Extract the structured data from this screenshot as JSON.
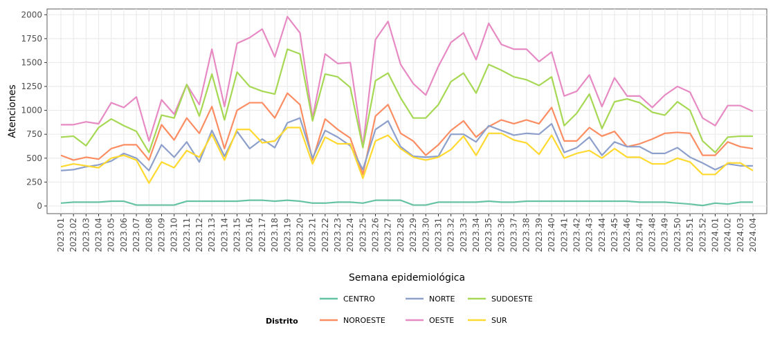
{
  "chart_data": {
    "type": "line",
    "x_label": "Semana epidemiológica",
    "y_label": "Atenciones",
    "legend_title": "Distrito",
    "categories": [
      "2023.01",
      "2023.02",
      "2023.03",
      "2023.04",
      "2023.05",
      "2023.06",
      "2023.07",
      "2023.08",
      "2023.09",
      "2023.10",
      "2023.11",
      "2023.12",
      "2023.13",
      "2023.14",
      "2023.15",
      "2023.16",
      "2023.17",
      "2023.18",
      "2023.19",
      "2023.20",
      "2023.21",
      "2023.22",
      "2023.23",
      "2023.24",
      "2023.25",
      "2023.26",
      "2023.27",
      "2023.28",
      "2023.29",
      "2023.30",
      "2023.31",
      "2023.32",
      "2023.33",
      "2023.34",
      "2023.35",
      "2023.36",
      "2023.37",
      "2023.38",
      "2023.39",
      "2023.40",
      "2023.41",
      "2023.42",
      "2023.43",
      "2023.44",
      "2023.45",
      "2023.46",
      "2023.47",
      "2023.48",
      "2023.49",
      "2023.50",
      "2023.51",
      "2023.52",
      "2024.01",
      "2024.02",
      "2024.03",
      "2024.04"
    ],
    "ylim": [
      -80,
      2060
    ],
    "yticks": [
      0,
      250,
      500,
      750,
      1000,
      1250,
      1500,
      1750,
      2000
    ],
    "grid": true,
    "series": [
      {
        "name": "CENTRO",
        "color": "#66c2a5",
        "values": [
          30,
          40,
          40,
          40,
          50,
          50,
          10,
          10,
          10,
          10,
          50,
          50,
          50,
          50,
          50,
          60,
          60,
          50,
          60,
          50,
          30,
          30,
          40,
          40,
          30,
          60,
          60,
          60,
          10,
          10,
          40,
          40,
          40,
          40,
          50,
          40,
          40,
          50,
          50,
          50,
          50,
          50,
          50,
          50,
          50,
          50,
          40,
          40,
          40,
          30,
          20,
          5,
          30,
          20,
          40,
          40
        ]
      },
      {
        "name": "NOROESTE",
        "color": "#fc8d62",
        "values": [
          530,
          480,
          510,
          490,
          600,
          640,
          640,
          480,
          850,
          690,
          920,
          760,
          1040,
          600,
          1000,
          1080,
          1080,
          920,
          1180,
          1060,
          480,
          910,
          800,
          710,
          330,
          940,
          1060,
          760,
          680,
          530,
          640,
          790,
          890,
          720,
          830,
          900,
          860,
          900,
          860,
          1030,
          680,
          680,
          820,
          730,
          780,
          620,
          650,
          700,
          760,
          770,
          760,
          530,
          530,
          670,
          620,
          600
        ]
      },
      {
        "name": "NORTE",
        "color": "#8da0cb",
        "values": [
          370,
          380,
          410,
          430,
          470,
          550,
          500,
          370,
          640,
          510,
          670,
          460,
          790,
          520,
          780,
          600,
          700,
          610,
          870,
          920,
          500,
          790,
          720,
          630,
          380,
          800,
          890,
          620,
          520,
          510,
          520,
          750,
          750,
          670,
          840,
          790,
          740,
          760,
          750,
          860,
          560,
          610,
          720,
          530,
          670,
          620,
          620,
          550,
          550,
          610,
          510,
          450,
          380,
          440,
          420,
          420
        ]
      },
      {
        "name": "OESTE",
        "color": "#e78ac3",
        "values": [
          850,
          850,
          880,
          860,
          1080,
          1030,
          1140,
          680,
          1110,
          960,
          1270,
          1060,
          1640,
          1040,
          1700,
          1760,
          1850,
          1560,
          1980,
          1810,
          920,
          1590,
          1490,
          1500,
          620,
          1740,
          1930,
          1480,
          1280,
          1160,
          1460,
          1710,
          1810,
          1530,
          1910,
          1690,
          1640,
          1640,
          1510,
          1610,
          1150,
          1200,
          1370,
          1040,
          1340,
          1150,
          1150,
          1030,
          1160,
          1250,
          1190,
          920,
          840,
          1050,
          1050,
          990
        ]
      },
      {
        "name": "SUDOESTE",
        "color": "#a6d854",
        "values": [
          720,
          730,
          630,
          820,
          910,
          840,
          780,
          560,
          950,
          920,
          1270,
          940,
          1380,
          900,
          1400,
          1250,
          1200,
          1170,
          1640,
          1590,
          890,
          1380,
          1350,
          1240,
          610,
          1310,
          1390,
          1130,
          920,
          920,
          1060,
          1300,
          1390,
          1180,
          1480,
          1420,
          1350,
          1320,
          1260,
          1350,
          840,
          970,
          1170,
          810,
          1090,
          1120,
          1080,
          980,
          950,
          1090,
          1000,
          680,
          560,
          720,
          730,
          730
        ]
      },
      {
        "name": "SUR",
        "color": "#ffd92f",
        "values": [
          410,
          440,
          420,
          400,
          500,
          530,
          480,
          240,
          460,
          400,
          580,
          510,
          750,
          480,
          800,
          800,
          660,
          680,
          820,
          820,
          440,
          720,
          650,
          650,
          290,
          680,
          740,
          600,
          510,
          480,
          510,
          590,
          730,
          530,
          760,
          760,
          690,
          660,
          540,
          740,
          500,
          550,
          580,
          500,
          600,
          510,
          510,
          440,
          440,
          500,
          460,
          330,
          330,
          450,
          450,
          370
        ]
      }
    ]
  }
}
